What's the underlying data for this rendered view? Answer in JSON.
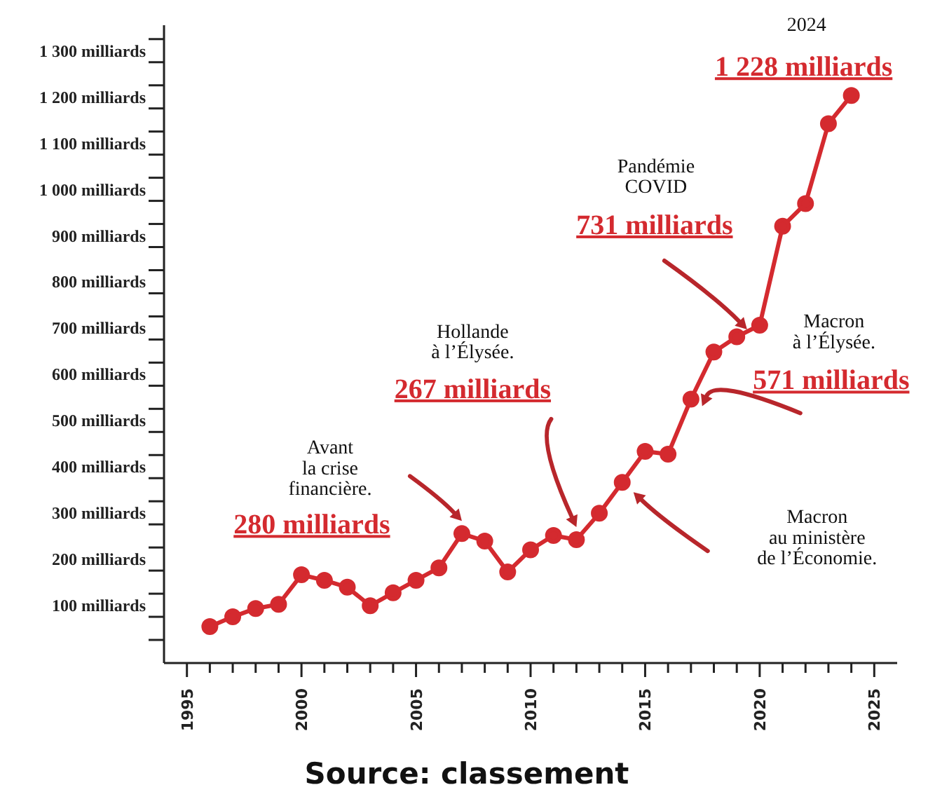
{
  "chart_data": {
    "type": "line",
    "marker": "circle",
    "x": [
      1996,
      1997,
      1998,
      1999,
      2000,
      2001,
      2002,
      2003,
      2004,
      2005,
      2006,
      2007,
      2008,
      2009,
      2010,
      2011,
      2012,
      2013,
      2014,
      2015,
      2016,
      2017,
      2018,
      2019,
      2020,
      2021,
      2022,
      2023,
      2024
    ],
    "series": [
      {
        "color": "#d42a2f",
        "values": [
          79,
          100,
          118,
          127,
          191,
          179,
          164,
          124,
          152,
          179,
          206,
          280,
          264,
          197,
          245,
          276,
          267,
          324,
          391,
          458,
          452,
          571,
          673,
          706,
          731,
          945,
          994,
          1167,
          1228
        ]
      }
    ],
    "xlim": [
      1994,
      2026
    ],
    "xticks": [
      1995,
      {
        "value": 1996,
        "label": null
      },
      {
        "value": 1997,
        "label": null
      },
      {
        "value": 1998,
        "label": null
      },
      {
        "value": 1999,
        "label": null
      },
      2000,
      {
        "value": 2001,
        "label": null
      },
      {
        "value": 2002,
        "label": null
      },
      {
        "value": 2003,
        "label": null
      },
      {
        "value": 2004,
        "label": null
      },
      2005,
      {
        "value": 2006,
        "label": null
      },
      {
        "value": 2007,
        "label": null
      },
      {
        "value": 2008,
        "label": null
      },
      {
        "value": 2009,
        "label": null
      },
      2010,
      {
        "value": 2011,
        "label": null
      },
      {
        "value": 2012,
        "label": null
      },
      {
        "value": 2013,
        "label": null
      },
      {
        "value": 2014,
        "label": null
      },
      2015,
      {
        "value": 2016,
        "label": null
      },
      {
        "value": 2017,
        "label": null
      },
      {
        "value": 2018,
        "label": null
      },
      {
        "value": 2019,
        "label": null
      },
      2020,
      {
        "value": 2021,
        "label": null
      },
      {
        "value": 2022,
        "label": null
      },
      {
        "value": 2023,
        "label": null
      },
      {
        "value": 2024,
        "label": null
      },
      2025
    ],
    "ylim": [
      0,
      1380
    ],
    "yticks": [
      {
        "value": 50,
        "label": null
      },
      {
        "value": 100,
        "label": "100 milliards"
      },
      {
        "value": 150,
        "label": null
      },
      {
        "value": 200,
        "label": "200 milliards"
      },
      {
        "value": 250,
        "label": null
      },
      {
        "value": 300,
        "label": "300 milliards"
      },
      {
        "value": 350,
        "label": null
      },
      {
        "value": 400,
        "label": "400 milliards"
      },
      {
        "value": 450,
        "label": null
      },
      {
        "value": 500,
        "label": "500 milliards"
      },
      {
        "value": 550,
        "label": null
      },
      {
        "value": 600,
        "label": "600 milliards"
      },
      {
        "value": 650,
        "label": null
      },
      {
        "value": 700,
        "label": "700 milliards"
      },
      {
        "value": 750,
        "label": null
      },
      {
        "value": 800,
        "label": "800 milliards"
      },
      {
        "value": 850,
        "label": null
      },
      {
        "value": 900,
        "label": "900 milliards"
      },
      {
        "value": 950,
        "label": null
      },
      {
        "value": 1000,
        "label": "1 000 milliards"
      },
      {
        "value": 1050,
        "label": null
      },
      {
        "value": 1100,
        "label": "1 100 milliards"
      },
      {
        "value": 1150,
        "label": null
      },
      {
        "value": 1200,
        "label": "1 200 milliards"
      },
      {
        "value": 1250,
        "label": null
      },
      {
        "value": 1300,
        "label": "1 300 milliards"
      },
      {
        "value": 1350,
        "label": null
      }
    ],
    "annotations": [
      "Avant\nla crise\nfinancière.",
      {
        "text": "280 milliards",
        "x": 2007,
        "y": 280
      },
      "Hollande\nà l’Élysée.",
      "267 milliards",
      "Pandémie\nCOVID",
      "731 milliards",
      "2024",
      {
        "text": "1 228 milliards",
        "x": 2024,
        "y": 1228
      },
      "Macron\nà l’Élysée.",
      {
        "text": "571 milliards",
        "x": 2017,
        "y": 571
      },
      "Macron\nau ministère\nde l’Économie.",
      "Source: classement"
    ]
  }
}
